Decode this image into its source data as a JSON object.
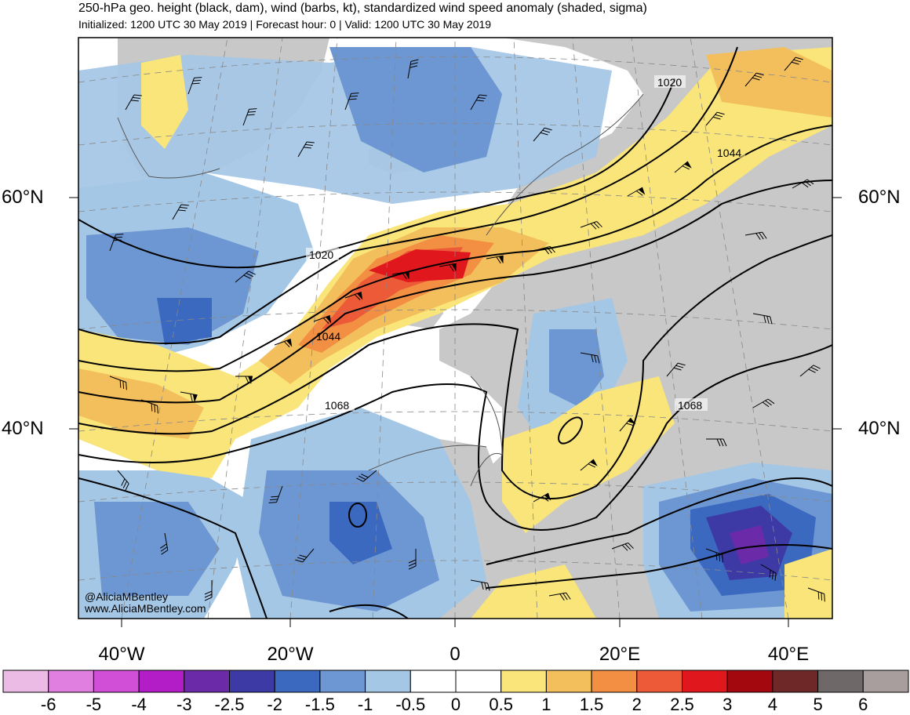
{
  "header": {
    "title": "250-hPa geo. height (black, dam), wind (barbs, kt), standardized wind speed anomaly (shaded, sigma)",
    "subtitle": "Initialized: 1200 UTC 30 May 2019 | Forecast hour: 0 | Valid: 1200 UTC 30 May 2019"
  },
  "map": {
    "lat_labels": [
      "60°N",
      "40°N"
    ],
    "lon_labels": [
      "40°W",
      "20°W",
      "0",
      "20°E",
      "40°E"
    ],
    "contour_labels": [
      "1020",
      "1020",
      "1044",
      "1044",
      "1068",
      "1068"
    ],
    "credit": [
      "@AliciaMBentley",
      "www.AliciaMBentley.com"
    ]
  },
  "colorbar": {
    "labels": [
      "-6",
      "-5",
      "-4",
      "-3",
      "-2.5",
      "-2",
      "-1.5",
      "-1",
      "-0.5",
      "0",
      "0.5",
      "1",
      "1.5",
      "2",
      "2.5",
      "3",
      "4",
      "5",
      "6"
    ],
    "colors": [
      "#ebbbe6",
      "#e07fe0",
      "#d14fd6",
      "#b21dc7",
      "#6b2ba8",
      "#3d3aa6",
      "#3b69bf",
      "#6d97d2",
      "#a5c7e6",
      "#ffffff",
      "#ffffff",
      "#f9e57a",
      "#f3bf5c",
      "#f28f43",
      "#ec5a37",
      "#e0171c",
      "#a3080f",
      "#6e2828",
      "#6e6868",
      "#a89e9e"
    ]
  },
  "colors": {
    "land_gray": "#c8c8c8",
    "ocean_white": "#ffffff",
    "contour": "#000000",
    "coastline": "#555555"
  }
}
